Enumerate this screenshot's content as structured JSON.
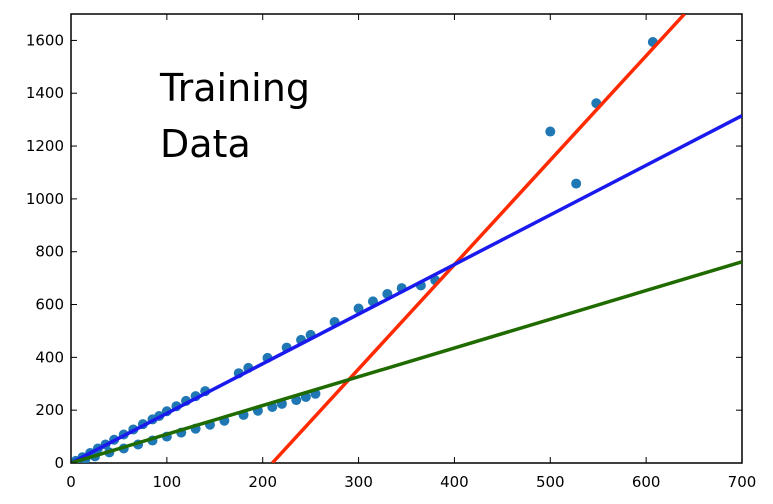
{
  "chart_data": {
    "type": "scatter",
    "title_lines": [
      "Training",
      "Data"
    ],
    "xlabel": "",
    "ylabel": "",
    "xlim": [
      0,
      700
    ],
    "ylim": [
      0,
      1700
    ],
    "x_ticks": [
      0,
      100,
      200,
      300,
      400,
      500,
      600,
      700
    ],
    "y_ticks": [
      0,
      200,
      400,
      600,
      800,
      1000,
      1200,
      1400,
      1600
    ],
    "grid": false,
    "series": [
      {
        "kind": "points",
        "color": "#1f77b4",
        "points": [
          [
            5,
            8
          ],
          [
            12,
            22
          ],
          [
            20,
            38
          ],
          [
            28,
            55
          ],
          [
            36,
            70
          ],
          [
            45,
            88
          ],
          [
            55,
            108
          ],
          [
            65,
            127
          ],
          [
            75,
            147
          ],
          [
            85,
            165
          ],
          [
            92,
            178
          ],
          [
            100,
            196
          ],
          [
            110,
            215
          ],
          [
            120,
            235
          ],
          [
            130,
            253
          ],
          [
            140,
            272
          ],
          [
            175,
            340
          ],
          [
            185,
            360
          ],
          [
            205,
            398
          ],
          [
            225,
            437
          ],
          [
            240,
            466
          ],
          [
            250,
            485
          ],
          [
            275,
            534
          ],
          [
            300,
            585
          ],
          [
            315,
            612
          ],
          [
            330,
            640
          ],
          [
            345,
            662
          ],
          [
            365,
            672
          ],
          [
            380,
            692
          ],
          [
            500,
            1255
          ],
          [
            527,
            1058
          ],
          [
            548,
            1362
          ],
          [
            607,
            1594
          ],
          [
            5,
            5
          ],
          [
            15,
            14
          ],
          [
            25,
            25
          ],
          [
            40,
            40
          ],
          [
            55,
            55
          ],
          [
            70,
            70
          ],
          [
            85,
            85
          ],
          [
            100,
            100
          ],
          [
            115,
            115
          ],
          [
            130,
            130
          ],
          [
            145,
            145
          ],
          [
            160,
            160
          ],
          [
            180,
            182
          ],
          [
            195,
            198
          ],
          [
            210,
            212
          ],
          [
            220,
            224
          ],
          [
            235,
            238
          ],
          [
            245,
            250
          ],
          [
            255,
            262
          ]
        ]
      },
      {
        "kind": "line",
        "color": "#ff2a00",
        "points": [
          [
            210,
            0
          ],
          [
            640,
            1700
          ]
        ]
      },
      {
        "kind": "line",
        "color": "#1a1aee",
        "points": [
          [
            0,
            0
          ],
          [
            700,
            1315
          ]
        ]
      },
      {
        "kind": "line",
        "color": "#1f6b00",
        "points": [
          [
            0,
            0
          ],
          [
            700,
            762
          ]
        ]
      }
    ]
  }
}
